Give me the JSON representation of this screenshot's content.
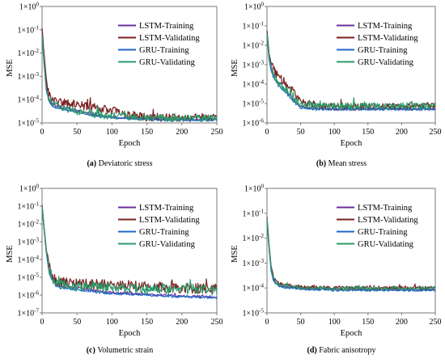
{
  "legend_colors": {
    "LSTM-Training": "#6a2fa0",
    "LSTM-Validating": "#7a1f1f",
    "GRU-Training": "#1f66c8",
    "GRU-Validating": "#2a9a6a"
  },
  "chart_data": [
    {
      "type": "line",
      "caption_label": "(a)",
      "caption_text": "Deviatoric stress",
      "xlabel": "Epoch",
      "ylabel": "MSE",
      "x_ticks": [
        "0",
        "50",
        "100",
        "150",
        "200",
        "250"
      ],
      "y_scale": "log",
      "y_ticks": [
        "1×10-5",
        "1×10-4",
        "1×10-3",
        "1×10-2",
        "1×10-1",
        "1×100"
      ],
      "xlim": [
        0,
        250
      ],
      "ylim_exp": [
        -5,
        0
      ],
      "legend_position": "top-right",
      "x": [
        0,
        3,
        6,
        10,
        15,
        25,
        50,
        75,
        100,
        125,
        150,
        175,
        200,
        225,
        250
      ],
      "series": [
        {
          "name": "LSTM-Training",
          "noise": 0.05,
          "values": [
            0.1,
            0.005,
            0.0004,
            0.0001,
            6e-05,
            5e-05,
            3.5e-05,
            2.2e-05,
            1.8e-05,
            1.6e-05,
            1.5e-05,
            1.4e-05,
            1.4e-05,
            1.4e-05,
            1.4e-05
          ]
        },
        {
          "name": "LSTM-Validating",
          "noise": 0.18,
          "values": [
            0.12,
            0.008,
            0.0008,
            0.00015,
            0.0001,
            8e-05,
            6e-05,
            4.5e-05,
            3.5e-05,
            2.2e-05,
            1.8e-05,
            1.7e-05,
            1.7e-05,
            1.7e-05,
            1.6e-05
          ]
        },
        {
          "name": "GRU-Training",
          "noise": 0.04,
          "values": [
            0.05,
            0.003,
            0.00025,
            8e-05,
            5e-05,
            4e-05,
            3e-05,
            2e-05,
            1.7e-05,
            1.5e-05,
            1.4e-05,
            1.3e-05,
            1.3e-05,
            1.3e-05,
            1.3e-05
          ]
        },
        {
          "name": "GRU-Validating",
          "noise": 0.15,
          "values": [
            0.06,
            0.004,
            0.0003,
            0.0001,
            7e-05,
            5e-05,
            3e-05,
            2.2e-05,
            2e-05,
            1.8e-05,
            1.7e-05,
            1.6e-05,
            1.6e-05,
            1.6e-05,
            1.6e-05
          ]
        }
      ]
    },
    {
      "type": "line",
      "caption_label": "(b)",
      "caption_text": "Mean stress",
      "xlabel": "Epoch",
      "ylabel": "MSE",
      "x_ticks": [
        "0",
        "50",
        "100",
        "150",
        "200",
        "250"
      ],
      "y_scale": "log",
      "y_ticks": [
        "1×10-6",
        "1×10-5",
        "1×10-4",
        "1×10-3",
        "1×10-2",
        "1×10-1",
        "1×100"
      ],
      "xlim": [
        0,
        250
      ],
      "ylim_exp": [
        -6,
        0
      ],
      "legend_position": "top-right",
      "x": [
        0,
        3,
        6,
        10,
        15,
        20,
        30,
        40,
        50,
        75,
        100,
        150,
        200,
        250
      ],
      "series": [
        {
          "name": "LSTM-Training",
          "noise": 0.06,
          "values": [
            0.05,
            0.003,
            0.0009,
            0.00035,
            0.00015,
            0.0001,
            4e-05,
            1.5e-05,
            7e-06,
            5.5e-06,
            5e-06,
            5e-06,
            5e-06,
            5e-06
          ]
        },
        {
          "name": "LSTM-Validating",
          "noise": 0.18,
          "values": [
            0.06,
            0.004,
            0.0012,
            0.0006,
            0.00025,
            0.00016,
            9e-05,
            4e-05,
            1.2e-05,
            8e-06,
            7e-06,
            7e-06,
            7e-06,
            7e-06
          ]
        },
        {
          "name": "GRU-Training",
          "noise": 0.06,
          "values": [
            0.03,
            0.002,
            0.0005,
            0.0002,
            0.0001,
            7e-05,
            3e-05,
            1.2e-05,
            6e-06,
            5e-06,
            5e-06,
            5e-06,
            5e-06,
            5e-06
          ]
        },
        {
          "name": "GRU-Validating",
          "noise": 0.2,
          "values": [
            0.04,
            0.003,
            0.0008,
            0.0003,
            0.00013,
            9e-05,
            5e-05,
            1.8e-05,
            9e-06,
            7e-06,
            7e-06,
            7e-06,
            7e-06,
            7e-06
          ]
        }
      ]
    },
    {
      "type": "line",
      "caption_label": "(c)",
      "caption_text": "Volumetric strain",
      "xlabel": "Epoch",
      "ylabel": "MSE",
      "x_ticks": [
        "0",
        "50",
        "100",
        "150",
        "200",
        "250"
      ],
      "y_scale": "log",
      "y_ticks": [
        "1×10-7",
        "1×10-6",
        "1×10-5",
        "1×10-4",
        "1×10-3",
        "1×10-2",
        "1×10-1",
        "1×100"
      ],
      "xlim": [
        0,
        250
      ],
      "ylim_exp": [
        -7,
        0
      ],
      "legend_position": "top-right",
      "x": [
        0,
        3,
        6,
        10,
        15,
        20,
        30,
        50,
        75,
        100,
        150,
        200,
        250
      ],
      "series": [
        {
          "name": "LSTM-Training",
          "noise": 0.06,
          "values": [
            0.1,
            0.005,
            0.0003,
            3e-05,
            8e-06,
            4e-06,
            3e-06,
            2.5e-06,
            1.8e-06,
            1.4e-06,
            1.1e-06,
            9e-07,
            8e-07
          ]
        },
        {
          "name": "LSTM-Validating",
          "noise": 0.3,
          "values": [
            0.12,
            0.006,
            0.0004,
            4e-05,
            1e-05,
            6e-06,
            5e-06,
            4.5e-06,
            4e-06,
            3.5e-06,
            3e-06,
            2.5e-06,
            2.2e-06
          ]
        },
        {
          "name": "GRU-Training",
          "noise": 0.06,
          "values": [
            0.08,
            0.004,
            0.00025,
            2e-05,
            6e-06,
            3e-06,
            2.5e-06,
            2e-06,
            1.5e-06,
            1.2e-06,
            1e-06,
            8e-07,
            7e-07
          ]
        },
        {
          "name": "GRU-Validating",
          "noise": 0.28,
          "values": [
            0.1,
            0.005,
            0.0003,
            3e-05,
            9e-06,
            5e-06,
            3.5e-06,
            3e-06,
            2.8e-06,
            2.5e-06,
            2.2e-06,
            2e-06,
            1.8e-06
          ]
        }
      ]
    },
    {
      "type": "line",
      "caption_label": "(d)",
      "caption_text": "Fabric anisotropy",
      "xlabel": "Epoch",
      "ylabel": "MSE",
      "x_ticks": [
        "0",
        "50",
        "100",
        "150",
        "200",
        "250"
      ],
      "y_scale": "log",
      "y_ticks": [
        "1×10-5",
        "1×10-4",
        "1×10-3",
        "1×10-2",
        "1×10-1",
        "1×100"
      ],
      "xlim": [
        0,
        250
      ],
      "ylim_exp": [
        -5,
        0
      ],
      "legend_position": "top-right",
      "x": [
        0,
        3,
        6,
        10,
        15,
        25,
        50,
        75,
        100,
        150,
        200,
        250
      ],
      "series": [
        {
          "name": "LSTM-Training",
          "noise": 0.04,
          "values": [
            0.05,
            0.005,
            0.0006,
            0.0002,
            0.00014,
            0.00011,
            0.0001,
            9e-05,
            9e-05,
            8.5e-05,
            8.5e-05,
            8.5e-05
          ]
        },
        {
          "name": "LSTM-Validating",
          "noise": 0.08,
          "values": [
            0.07,
            0.006,
            0.0008,
            0.00025,
            0.00016,
            0.00013,
            0.00011,
            0.0001,
            0.0001,
            0.0001,
            0.0001,
            0.0001
          ]
        },
        {
          "name": "GRU-Training",
          "noise": 0.04,
          "values": [
            0.04,
            0.004,
            0.0005,
            0.00018,
            0.00013,
            0.0001,
            9e-05,
            8.5e-05,
            8e-05,
            8e-05,
            8e-05,
            8e-05
          ]
        },
        {
          "name": "GRU-Validating",
          "noise": 0.08,
          "values": [
            0.06,
            0.005,
            0.0007,
            0.00022,
            0.00015,
            0.00012,
            0.0001,
            9.5e-05,
            9.5e-05,
            9.5e-05,
            9.5e-05,
            9.5e-05
          ]
        }
      ]
    }
  ]
}
